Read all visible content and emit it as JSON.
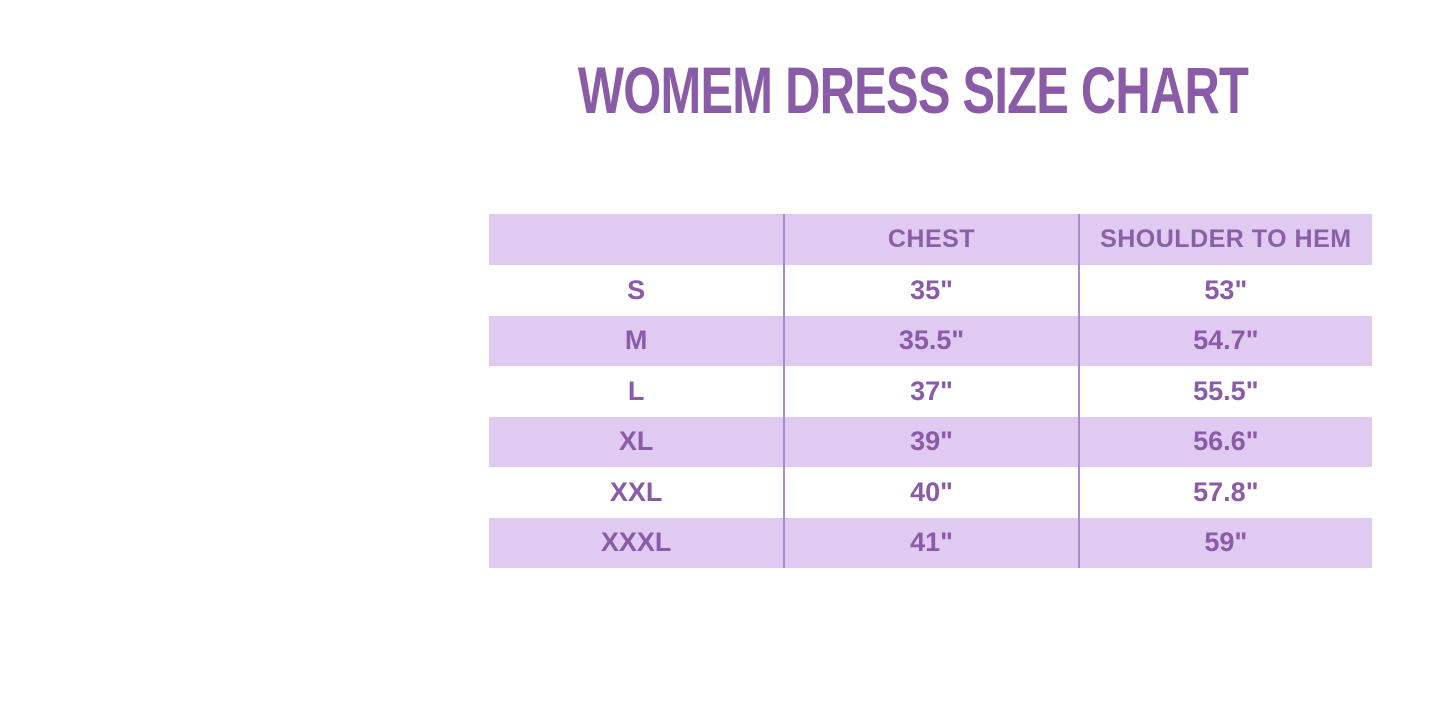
{
  "colors": {
    "title_text": "#8a5ba6",
    "table_text": "#8a5ba8",
    "lavender_row_bg": "#e1caf2",
    "white_row_bg": "#ffffff",
    "column_divider": "#a98bc9",
    "page_bg": "#ffffff"
  },
  "chart_data": {
    "type": "table",
    "title": "WOMEM DRESS SIZE CHART",
    "columns": [
      "",
      "CHEST",
      "SHOULDER TO HEM"
    ],
    "rows": [
      [
        "S",
        "35\"",
        "53\""
      ],
      [
        "M",
        "35.5\"",
        "54.7\""
      ],
      [
        "L",
        "37\"",
        "55.5\""
      ],
      [
        "XL",
        "39\"",
        "56.6\""
      ],
      [
        "XXL",
        "40\"",
        "57.8\""
      ],
      [
        "XXXL",
        "41\"",
        "59\""
      ]
    ],
    "layout": {
      "header_bg": "lavender",
      "row_alternation": "data rows alternate white, lavender starting with white",
      "column_dividers_only": true,
      "no_outer_border": true,
      "text_align": "center"
    }
  }
}
